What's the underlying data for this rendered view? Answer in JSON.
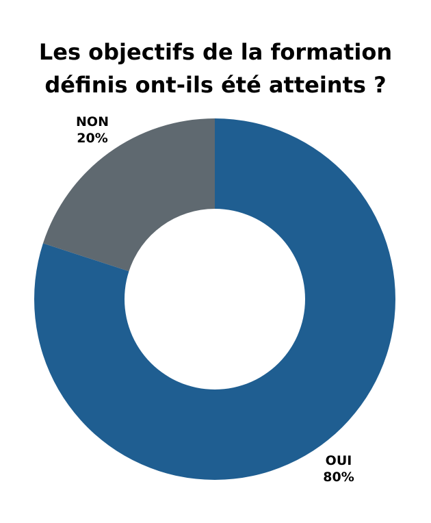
{
  "chart_data": {
    "type": "pie",
    "donut": true,
    "title_lines": [
      "Les objectifs de la formation",
      "définis ont-ils été atteints ?"
    ],
    "slices": [
      {
        "label": "OUI",
        "value": 80,
        "pct_label": "80%",
        "color": "#1f5e91"
      },
      {
        "label": "NON",
        "value": 20,
        "pct_label": "20%",
        "color": "#5f6970"
      }
    ]
  }
}
